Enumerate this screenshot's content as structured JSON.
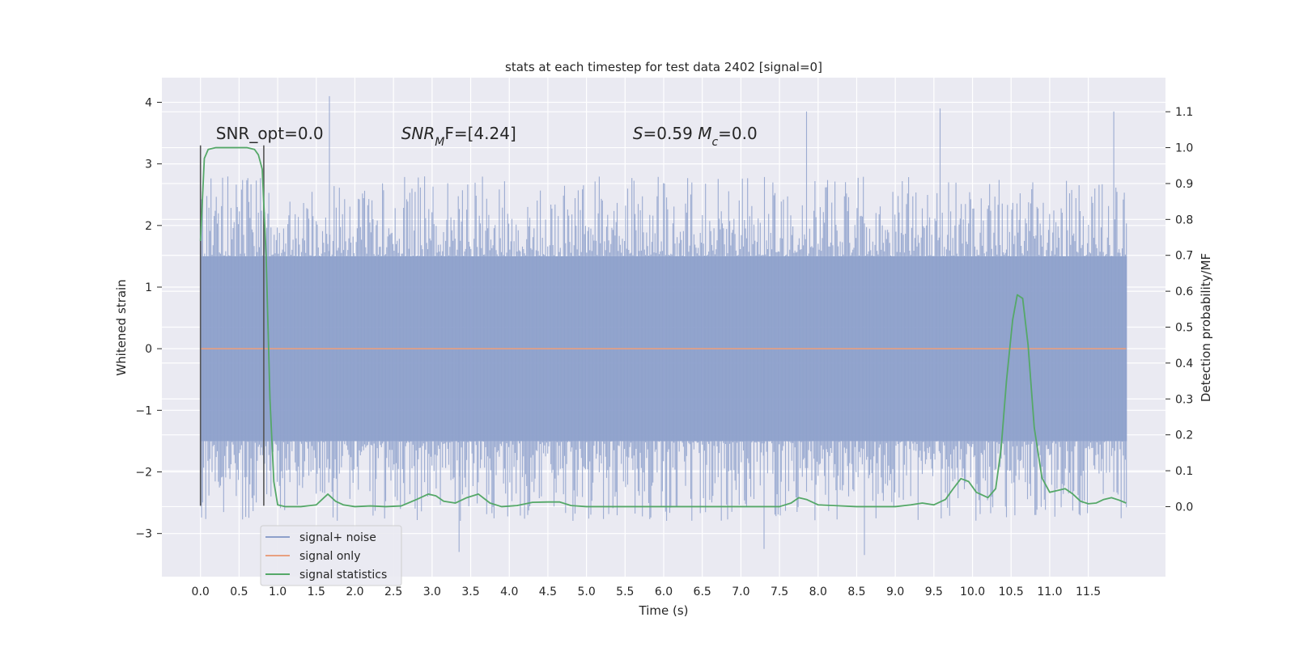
{
  "chart_data": {
    "type": "line",
    "title": "stats at each timestep for test data 2402 [signal=0]",
    "xlabel": "Time (s)",
    "ylabel": "Whitened strain",
    "ylabel_right": "Detection probability/MF",
    "xlim": [
      -0.5,
      12.5
    ],
    "ylim": [
      -3.7,
      4.4
    ],
    "ylim_right": [
      -0.195,
      1.195
    ],
    "x_ticks": [
      0.0,
      0.5,
      1.0,
      1.5,
      2.0,
      2.5,
      3.0,
      3.5,
      4.0,
      4.5,
      5.0,
      5.5,
      6.0,
      6.5,
      7.0,
      7.5,
      8.0,
      8.5,
      9.0,
      9.5,
      10.0,
      10.5,
      11.0,
      11.5
    ],
    "x_tick_labels": [
      "0.0",
      "0.5",
      "1.0",
      "1.5",
      "2.0",
      "2.5",
      "3.0",
      "3.5",
      "4.0",
      "4.5",
      "5.0",
      "5.5",
      "6.0",
      "6.5",
      "7.0",
      "7.5",
      "8.0",
      "8.5",
      "9.0",
      "9.5",
      "10.0",
      "10.5",
      "11.0",
      "11.5"
    ],
    "y_ticks": [
      -3,
      -2,
      -1,
      0,
      1,
      2,
      3,
      4
    ],
    "y_tick_labels": [
      "−3",
      "−2",
      "−1",
      "0",
      "1",
      "2",
      "3",
      "4"
    ],
    "y_right_ticks": [
      0.0,
      0.1,
      0.2,
      0.3,
      0.4,
      0.5,
      0.6,
      0.7,
      0.8,
      0.9,
      1.0,
      1.1
    ],
    "y_right_tick_labels": [
      "0.0",
      "0.1",
      "0.2",
      "0.3",
      "0.4",
      "0.5",
      "0.6",
      "0.7",
      "0.8",
      "0.9",
      "1.0",
      "1.1"
    ],
    "grid": true,
    "legend": "lower-left",
    "noise_x_range": [
      0.0,
      11.999
    ],
    "noise_typical_range": [
      -1.5,
      1.5
    ],
    "noise_extremes": {
      "max": 4.1,
      "min": -3.35
    },
    "series": [
      {
        "name": "signal+ noise",
        "color": "#8da0cb",
        "axis": "left",
        "kind": "noise-band"
      },
      {
        "name": "signal only",
        "color": "#e8a080",
        "axis": "left",
        "x": [
          0.0,
          11.99
        ],
        "y": [
          0.0,
          0.0
        ]
      },
      {
        "name": "signal statistics",
        "color": "#55a868",
        "axis": "right",
        "x": [
          0.0,
          0.05,
          0.1,
          0.2,
          0.3,
          0.4,
          0.5,
          0.6,
          0.7,
          0.75,
          0.8,
          0.85,
          0.9,
          0.95,
          1.0,
          1.1,
          1.3,
          1.5,
          1.6,
          1.65,
          1.75,
          1.85,
          2.0,
          2.2,
          2.4,
          2.6,
          2.8,
          2.95,
          3.05,
          3.15,
          3.3,
          3.45,
          3.6,
          3.75,
          3.9,
          4.1,
          4.3,
          4.5,
          4.65,
          4.8,
          5.0,
          5.5,
          6.0,
          6.5,
          7.0,
          7.5,
          7.65,
          7.75,
          7.85,
          8.0,
          8.2,
          8.5,
          9.0,
          9.2,
          9.35,
          9.5,
          9.65,
          9.75,
          9.85,
          9.95,
          10.05,
          10.2,
          10.3,
          10.37,
          10.44,
          10.52,
          10.58,
          10.65,
          10.72,
          10.8,
          10.9,
          11.0,
          11.1,
          11.2,
          11.3,
          11.4,
          11.5,
          11.6,
          11.7,
          11.8,
          11.9,
          11.99
        ],
        "y": [
          0.74,
          0.97,
          0.995,
          1.0,
          1.0,
          1.0,
          1.0,
          1.0,
          0.995,
          0.98,
          0.94,
          0.7,
          0.3,
          0.07,
          0.005,
          0.0,
          0.0,
          0.005,
          0.025,
          0.035,
          0.015,
          0.005,
          0.0,
          0.002,
          0.0,
          0.002,
          0.02,
          0.035,
          0.03,
          0.015,
          0.01,
          0.025,
          0.035,
          0.01,
          0.0,
          0.003,
          0.012,
          0.013,
          0.013,
          0.003,
          0.0,
          0.0,
          0.0,
          0.0,
          0.0,
          0.0,
          0.01,
          0.025,
          0.02,
          0.005,
          0.003,
          0.0,
          0.0,
          0.005,
          0.01,
          0.005,
          0.02,
          0.05,
          0.078,
          0.07,
          0.04,
          0.025,
          0.05,
          0.16,
          0.35,
          0.52,
          0.59,
          0.58,
          0.45,
          0.22,
          0.08,
          0.04,
          0.045,
          0.05,
          0.035,
          0.015,
          0.008,
          0.01,
          0.02,
          0.025,
          0.018,
          0.01
        ]
      },
      {
        "name": "",
        "color": "#555555",
        "axis": "left",
        "kind": "vertical-marker",
        "x": [
          0.0,
          0.0
        ],
        "y": [
          -2.55,
          3.3
        ]
      },
      {
        "name": "",
        "color": "#555555",
        "axis": "left",
        "kind": "vertical-marker",
        "x": [
          0.82,
          0.82
        ],
        "y": [
          -2.55,
          3.3
        ]
      }
    ],
    "annotations": [
      {
        "text": "SNR_opt=0.0",
        "x": 0.2,
        "y": 3.4
      },
      {
        "text_parts": [
          [
            "SNR",
            "i"
          ],
          [
            "M",
            "sub-i"
          ],
          [
            "F=[4.24]",
            ""
          ]
        ],
        "x": 2.6,
        "y": 3.4
      },
      {
        "text_parts": [
          [
            "S",
            "i"
          ],
          [
            "=0.59   ",
            ""
          ],
          [
            "M",
            "i"
          ],
          [
            "c",
            "sub-i"
          ],
          [
            "=0.0",
            ""
          ]
        ],
        "x": 5.6,
        "y": 3.4
      }
    ]
  }
}
